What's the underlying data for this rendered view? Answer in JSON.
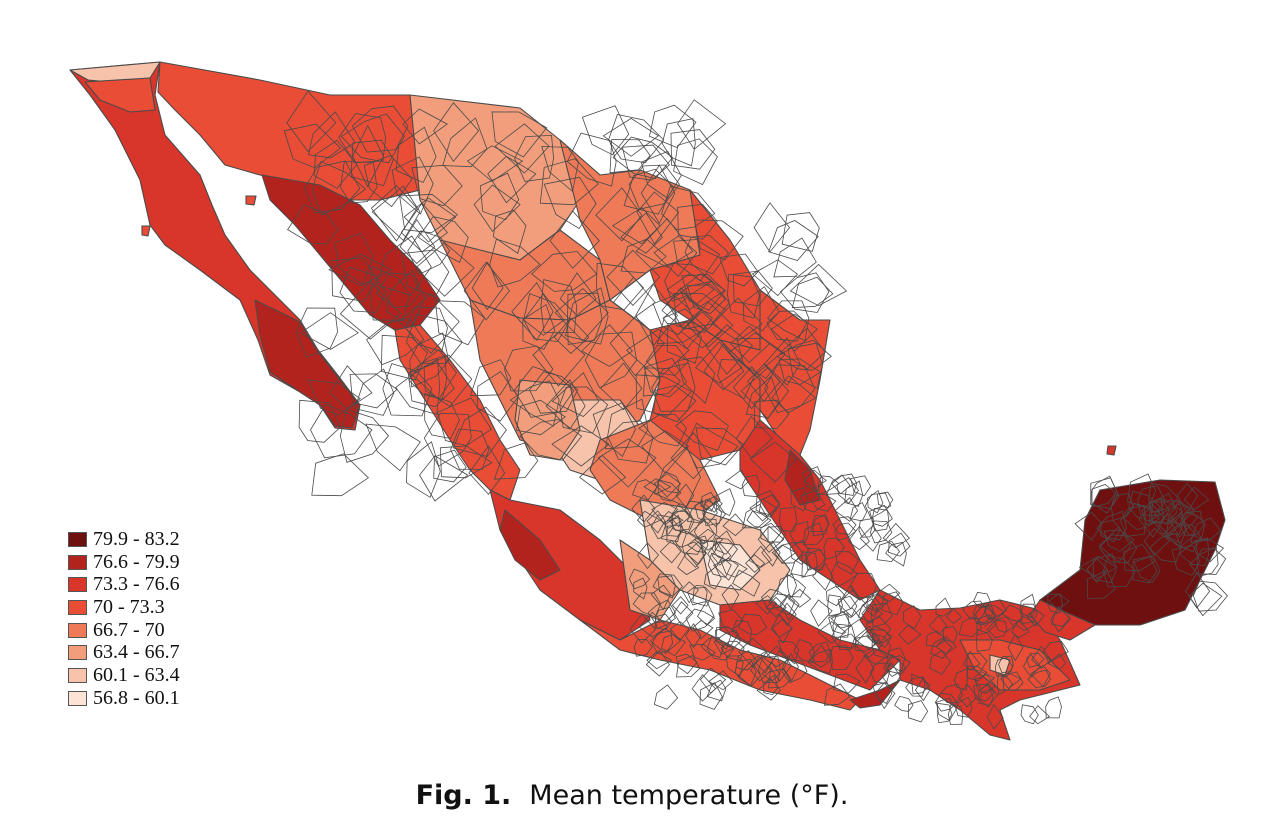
{
  "legend": {
    "items": [
      {
        "label": "79.9 - 83.2",
        "color": "#6e1010"
      },
      {
        "label": "76.6 - 79.9",
        "color": "#b3231e"
      },
      {
        "label": "73.3 - 76.6",
        "color": "#d8352b"
      },
      {
        "label": "70 - 73.3",
        "color": "#ea4d36"
      },
      {
        "label": "66.7 - 70",
        "color": "#ef7a58"
      },
      {
        "label": "63.4 - 66.7",
        "color": "#f29e7c"
      },
      {
        "label": "60.1 - 63.4",
        "color": "#f7c3aa"
      },
      {
        "label": "56.8 - 60.1",
        "color": "#fde3d5"
      }
    ]
  },
  "caption": {
    "fig_number": "Fig. 1.",
    "text": "Mean temperature (°F)."
  },
  "colors": {
    "boundary": "#4a4a4a",
    "background": "#ffffff"
  }
}
